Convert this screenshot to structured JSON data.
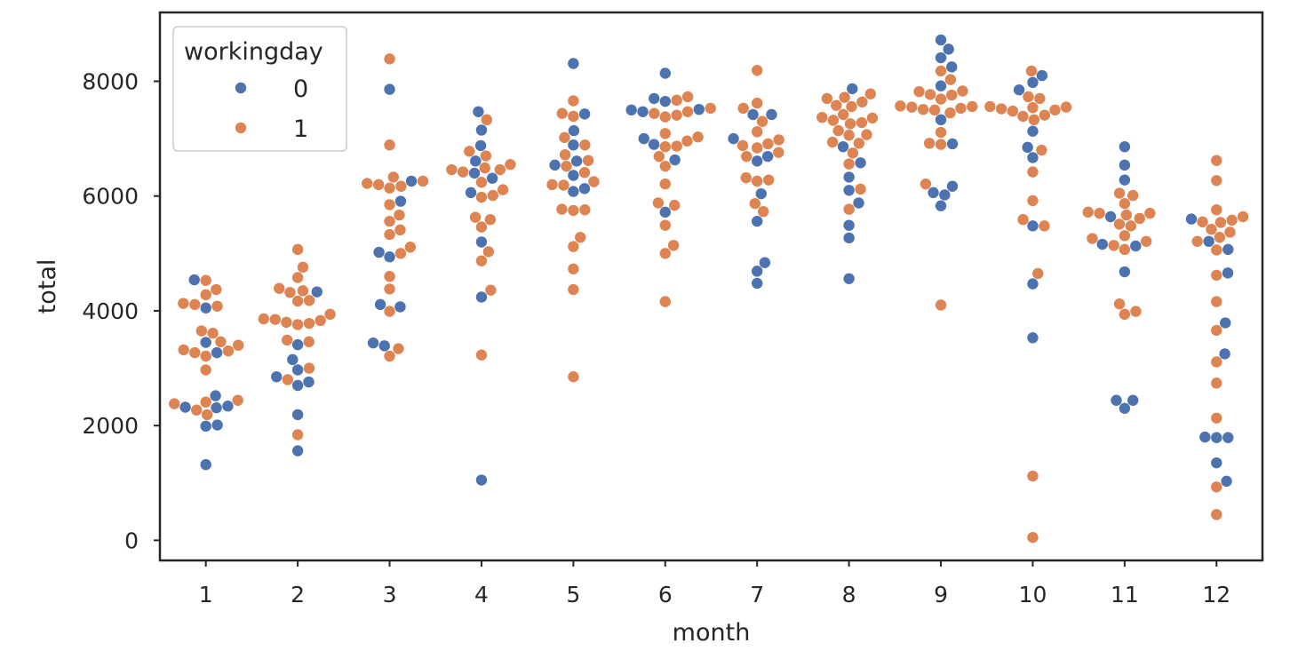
{
  "chart_data": {
    "type": "scatter",
    "subtype": "swarm",
    "xlabel": "month",
    "ylabel": "total",
    "categories": [
      "1",
      "2",
      "3",
      "4",
      "5",
      "6",
      "7",
      "8",
      "9",
      "10",
      "11",
      "12"
    ],
    "ylim": [
      -350,
      9200
    ],
    "yticks": [
      0,
      2000,
      4000,
      6000,
      8000
    ],
    "ytick_labels": [
      "0",
      "2000",
      "4000",
      "6000",
      "8000"
    ],
    "grid": false,
    "legend": {
      "title": "workingday",
      "placement": "top-left",
      "entries": [
        {
          "label": "0",
          "color": "#4c72b0"
        },
        {
          "label": "1",
          "color": "#dd8452"
        }
      ]
    },
    "series": [
      {
        "name": "0",
        "color": "#4c72b0",
        "values": [
          [
            1320,
            1990,
            2010,
            2310,
            2320,
            2340,
            2520,
            3270,
            3450,
            4050,
            4540
          ],
          [
            1560,
            2190,
            2700,
            2760,
            2850,
            2970,
            3150,
            3410,
            4330
          ],
          [
            3390,
            3440,
            4070,
            4110,
            4940,
            5020,
            5910,
            6260,
            7860
          ],
          [
            1050,
            4240,
            5200,
            6060,
            6310,
            6400,
            6610,
            6880,
            7150,
            7470
          ],
          [
            6080,
            6130,
            6360,
            6540,
            6610,
            6890,
            7140,
            7430,
            8310
          ],
          [
            5720,
            6630,
            6900,
            7000,
            7470,
            7500,
            7510,
            7650,
            7700,
            8140
          ],
          [
            4480,
            4690,
            4840,
            5560,
            6040,
            6610,
            6690,
            7000,
            7420,
            7420
          ],
          [
            4560,
            5270,
            5490,
            5880,
            6100,
            6330,
            6580,
            6860,
            7870
          ],
          [
            5830,
            6020,
            6060,
            6170,
            6910,
            7330,
            7920,
            8250,
            8410,
            8560,
            8720
          ],
          [
            3530,
            4470,
            5480,
            6670,
            6850,
            7130,
            7850,
            7980,
            8100
          ],
          [
            2300,
            2440,
            2440,
            4680,
            5130,
            5160,
            5640,
            6280,
            6540,
            6860
          ],
          [
            1030,
            1350,
            1790,
            1790,
            1800,
            3250,
            3790,
            4660,
            5070,
            5210,
            5600
          ]
        ]
      },
      {
        "name": "1",
        "color": "#dd8452",
        "values": [
          [
            2190,
            2270,
            2380,
            2410,
            2440,
            2970,
            3210,
            3270,
            3300,
            3320,
            3400,
            3460,
            3610,
            3650,
            4080,
            4110,
            4130,
            4280,
            4370,
            4530
          ],
          [
            1840,
            2800,
            3000,
            3460,
            3490,
            3760,
            3780,
            3800,
            3830,
            3850,
            3860,
            3940,
            4170,
            4180,
            4320,
            4350,
            4390,
            4580,
            4760,
            5070
          ],
          [
            3210,
            3340,
            3990,
            4380,
            4600,
            5000,
            5110,
            5330,
            5410,
            5560,
            5670,
            5850,
            6140,
            6170,
            6200,
            6220,
            6260,
            6330,
            6890,
            8390
          ],
          [
            3230,
            4360,
            4870,
            5030,
            5460,
            5590,
            5630,
            5980,
            6010,
            6110,
            6240,
            6420,
            6460,
            6460,
            6490,
            6550,
            6700,
            6780,
            7330
          ],
          [
            2850,
            4370,
            4730,
            5120,
            5280,
            5750,
            5760,
            5770,
            6190,
            6200,
            6250,
            6410,
            6520,
            6620,
            6720,
            6890,
            7020,
            7390,
            7440,
            7660
          ],
          [
            4160,
            5000,
            5140,
            5490,
            5840,
            5880,
            6210,
            6520,
            6690,
            6860,
            6870,
            6960,
            7030,
            7090,
            7380,
            7410,
            7440,
            7470,
            7530,
            7670,
            7730
          ],
          [
            5730,
            5870,
            6260,
            6280,
            6320,
            6690,
            6760,
            6840,
            6880,
            6910,
            6980,
            7120,
            7300,
            7530,
            7620,
            8190
          ],
          [
            5770,
            6120,
            6560,
            6750,
            6920,
            6940,
            7060,
            7070,
            7140,
            7260,
            7280,
            7320,
            7360,
            7370,
            7420,
            7560,
            7580,
            7640,
            7700,
            7720,
            7780
          ],
          [
            4100,
            6210,
            6900,
            6920,
            7110,
            7450,
            7500,
            7510,
            7530,
            7550,
            7560,
            7570,
            7690,
            7760,
            7770,
            7820,
            7830,
            8030,
            8180
          ],
          [
            50,
            1120,
            4650,
            5480,
            5590,
            5920,
            6420,
            6800,
            7330,
            7390,
            7410,
            7480,
            7500,
            7520,
            7540,
            7550,
            7560,
            7700,
            7730,
            8180
          ],
          [
            3940,
            3990,
            4120,
            5070,
            5140,
            5210,
            5260,
            5310,
            5480,
            5510,
            5610,
            5670,
            5700,
            5700,
            5720,
            5870,
            6010,
            6050
          ],
          [
            450,
            930,
            2130,
            2740,
            3110,
            3660,
            4160,
            4620,
            5060,
            5210,
            5280,
            5370,
            5420,
            5540,
            5550,
            5580,
            5640,
            5760,
            6270,
            6620
          ]
        ]
      }
    ]
  }
}
